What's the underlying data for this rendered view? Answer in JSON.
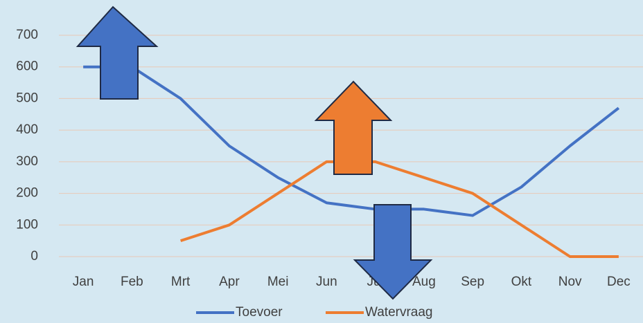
{
  "chart_data": {
    "type": "line",
    "categories": [
      "Jan",
      "Feb",
      "Mrt",
      "Apr",
      "Mei",
      "Jun",
      "Jul",
      "Aug",
      "Sep",
      "Okt",
      "Nov",
      "Dec"
    ],
    "series": [
      {
        "name": "Toevoer",
        "color": "#4472c4",
        "values": [
          600,
          600,
          500,
          350,
          250,
          170,
          150,
          150,
          130,
          220,
          350,
          470
        ]
      },
      {
        "name": "Watervraag",
        "color": "#ed7d31",
        "values": [
          null,
          null,
          50,
          100,
          200,
          300,
          300,
          250,
          200,
          100,
          0,
          0
        ]
      }
    ],
    "ylim": [
      0,
      700
    ],
    "yticks": [
      0,
      100,
      200,
      300,
      400,
      500,
      600,
      700
    ],
    "grid": true,
    "legend": "bottom"
  }
}
